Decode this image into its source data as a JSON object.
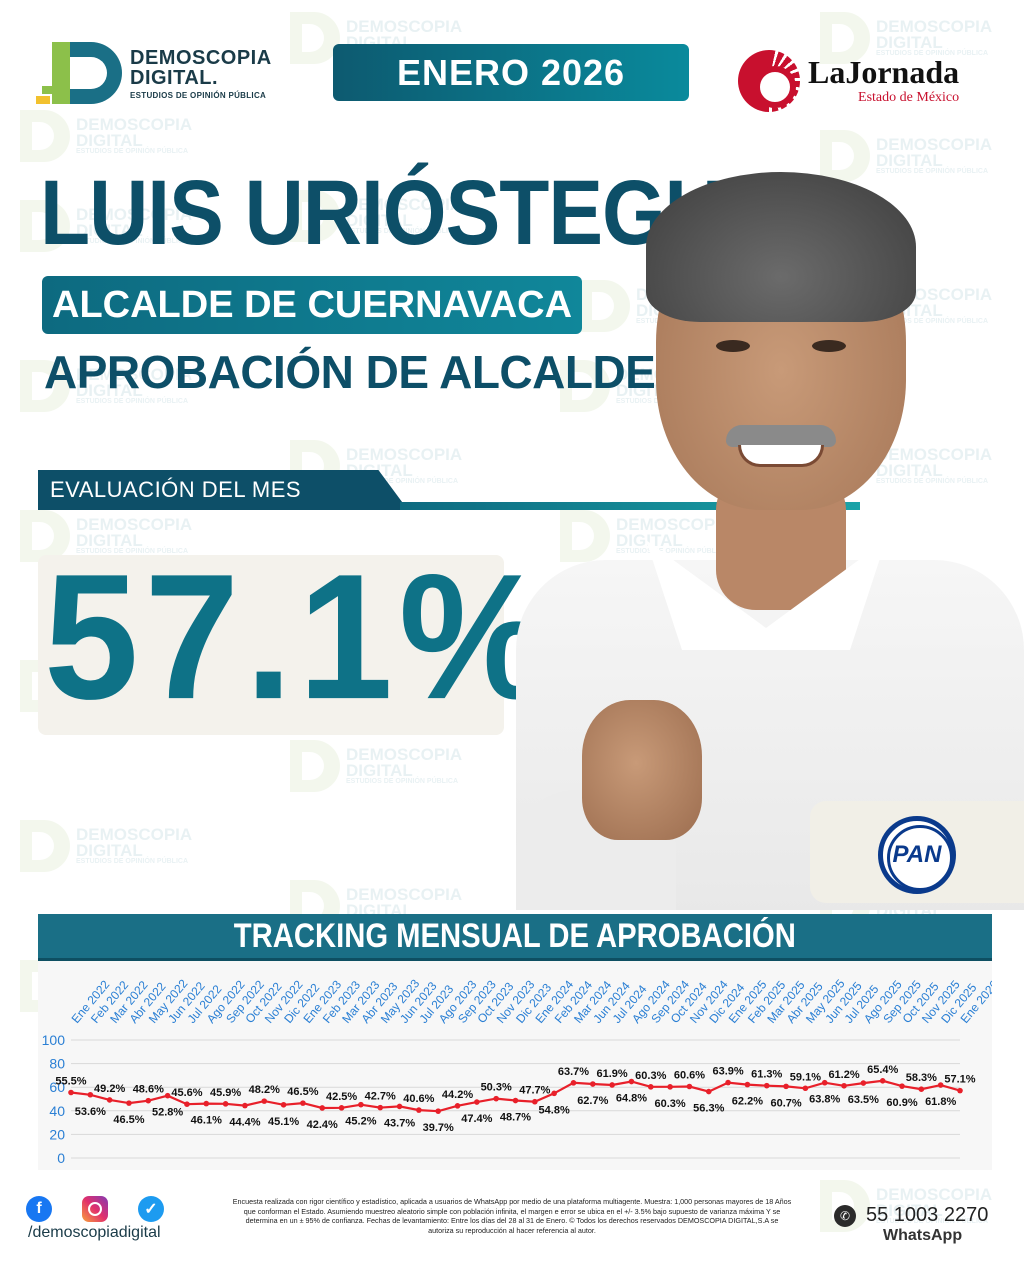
{
  "brand": {
    "line1": "DEMOSCOPIA",
    "line2": "DIGITAL.",
    "tagline": "ESTUDIOS DE OPINIÓN PÚBLICA"
  },
  "watermark": {
    "line1": "DEMOSCOPIA",
    "line2": "DIGITAL",
    "tagline": "ESTUDIOS DE OPINIÓN PÚBLICA"
  },
  "month": "ENERO 2026",
  "partner": {
    "name": "LaJornada",
    "sub": "Estado de México"
  },
  "name": "LUIS URIÓSTEGUI",
  "role": "ALCALDE DE CUERNAVACA",
  "subtitle": "APROBACIÓN DE ALCALDES",
  "evaluation_label": "EVALUACIÓN DEL MES",
  "evaluation_value": "57.1%",
  "party": "PAN",
  "tracking_title": "TRACKING MENSUAL DE APROBACIÓN",
  "chart_data": {
    "type": "line",
    "categories": [
      "Ene 2022",
      "Feb 2022",
      "Mar 2022",
      "Abr 2022",
      "May 2022",
      "Jun 2022",
      "Jul 2022",
      "Ago 2022",
      "Sep 2022",
      "Oct 2022",
      "Nov 2022",
      "Dic 2022",
      "Ene 2023",
      "Feb 2023",
      "Mar 2023",
      "Abr 2023",
      "May 2023",
      "Jun 2023",
      "Jul 2023",
      "Ago 2023",
      "Sep 2023",
      "Oct 2023",
      "Nov 2023",
      "Dic 2023",
      "Ene 2024",
      "Feb 2024",
      "Mar 2024",
      "Jun 2024",
      "Jul 2024",
      "Ago 2024",
      "Sep 2024",
      "Oct 2024",
      "Nov 2024",
      "Dic 2024",
      "Ene 2025",
      "Feb 2025",
      "Mar 2025",
      "Abr 2025",
      "May 2025",
      "Jun 2025",
      "Jul 2025",
      "Ago 2025",
      "Sep 2025",
      "Oct 2025",
      "Nov 2025",
      "Dic 2025",
      "Ene 2026"
    ],
    "values": [
      55.5,
      53.6,
      49.2,
      46.5,
      48.6,
      52.8,
      45.6,
      46.1,
      45.9,
      44.4,
      48.2,
      45.1,
      46.5,
      42.4,
      42.5,
      45.2,
      42.7,
      43.7,
      40.6,
      39.7,
      44.2,
      47.4,
      50.3,
      48.7,
      47.7,
      54.8,
      63.7,
      62.7,
      61.9,
      64.8,
      60.3,
      60.3,
      60.6,
      56.3,
      63.9,
      62.2,
      61.3,
      60.7,
      59.1,
      63.8,
      61.2,
      63.5,
      65.4,
      60.9,
      58.3,
      61.8,
      57.1
    ],
    "labels": [
      "55.5%",
      "53.6%",
      "49.2%",
      "46.5%",
      "48.6%",
      "52.8%",
      "45.6%",
      "46.1%",
      "45.9%",
      "44.4%",
      "48.2%",
      "45.1%",
      "46.5%",
      "42.4%",
      "42.5%",
      "45.2%",
      "42.7%",
      "43.7%",
      "40.6%",
      "39.7%",
      "44.2%",
      "47.4%",
      "50.3%",
      "48.7%",
      "47.7%",
      "54.8%",
      "63.7%",
      "62.7%",
      "61.9%",
      "64.8%",
      "60.3%",
      "60.3%",
      "60.6%",
      "56.3%",
      "63.9%",
      "62.2%",
      "61.3%",
      "60.7%",
      "59.1%",
      "63.8%",
      "61.2%",
      "63.5%",
      "65.4%",
      "60.9%",
      "58.3%",
      "61.8%",
      "57.1%"
    ],
    "yticks": [
      "0",
      "20",
      "40",
      "60",
      "80",
      "100"
    ],
    "ylim": [
      0,
      100
    ],
    "grid": true,
    "line_color": "#e8202a",
    "category_color": "#2a7fd4"
  },
  "footer": {
    "handle": "/demoscopiadigital",
    "disclaimer": "Encuesta realizada con rigor científico y estadístico, aplicada a usuarios de WhatsApp por medio de una plataforma multiagente. Muestra: 1,000 personas mayores de 18 Años que conforman el Estado. Asumiendo muestreo aleatorio simple con población infinita, el margen e error se ubica en el +/- 3.5% bajo supuesto de varianza máxima Y se determina en un ± 95% de confianza. Fechas de levantamiento: Entre los días del 28 al 31 de Enero. © Todos los derechos reservados DEMOSCOPIA DIGITAL,S.A se autoriza su reproducción al hacer referencia al autor.",
    "phone": "55 1003 2270",
    "whatsapp_label": "WhatsApp"
  }
}
